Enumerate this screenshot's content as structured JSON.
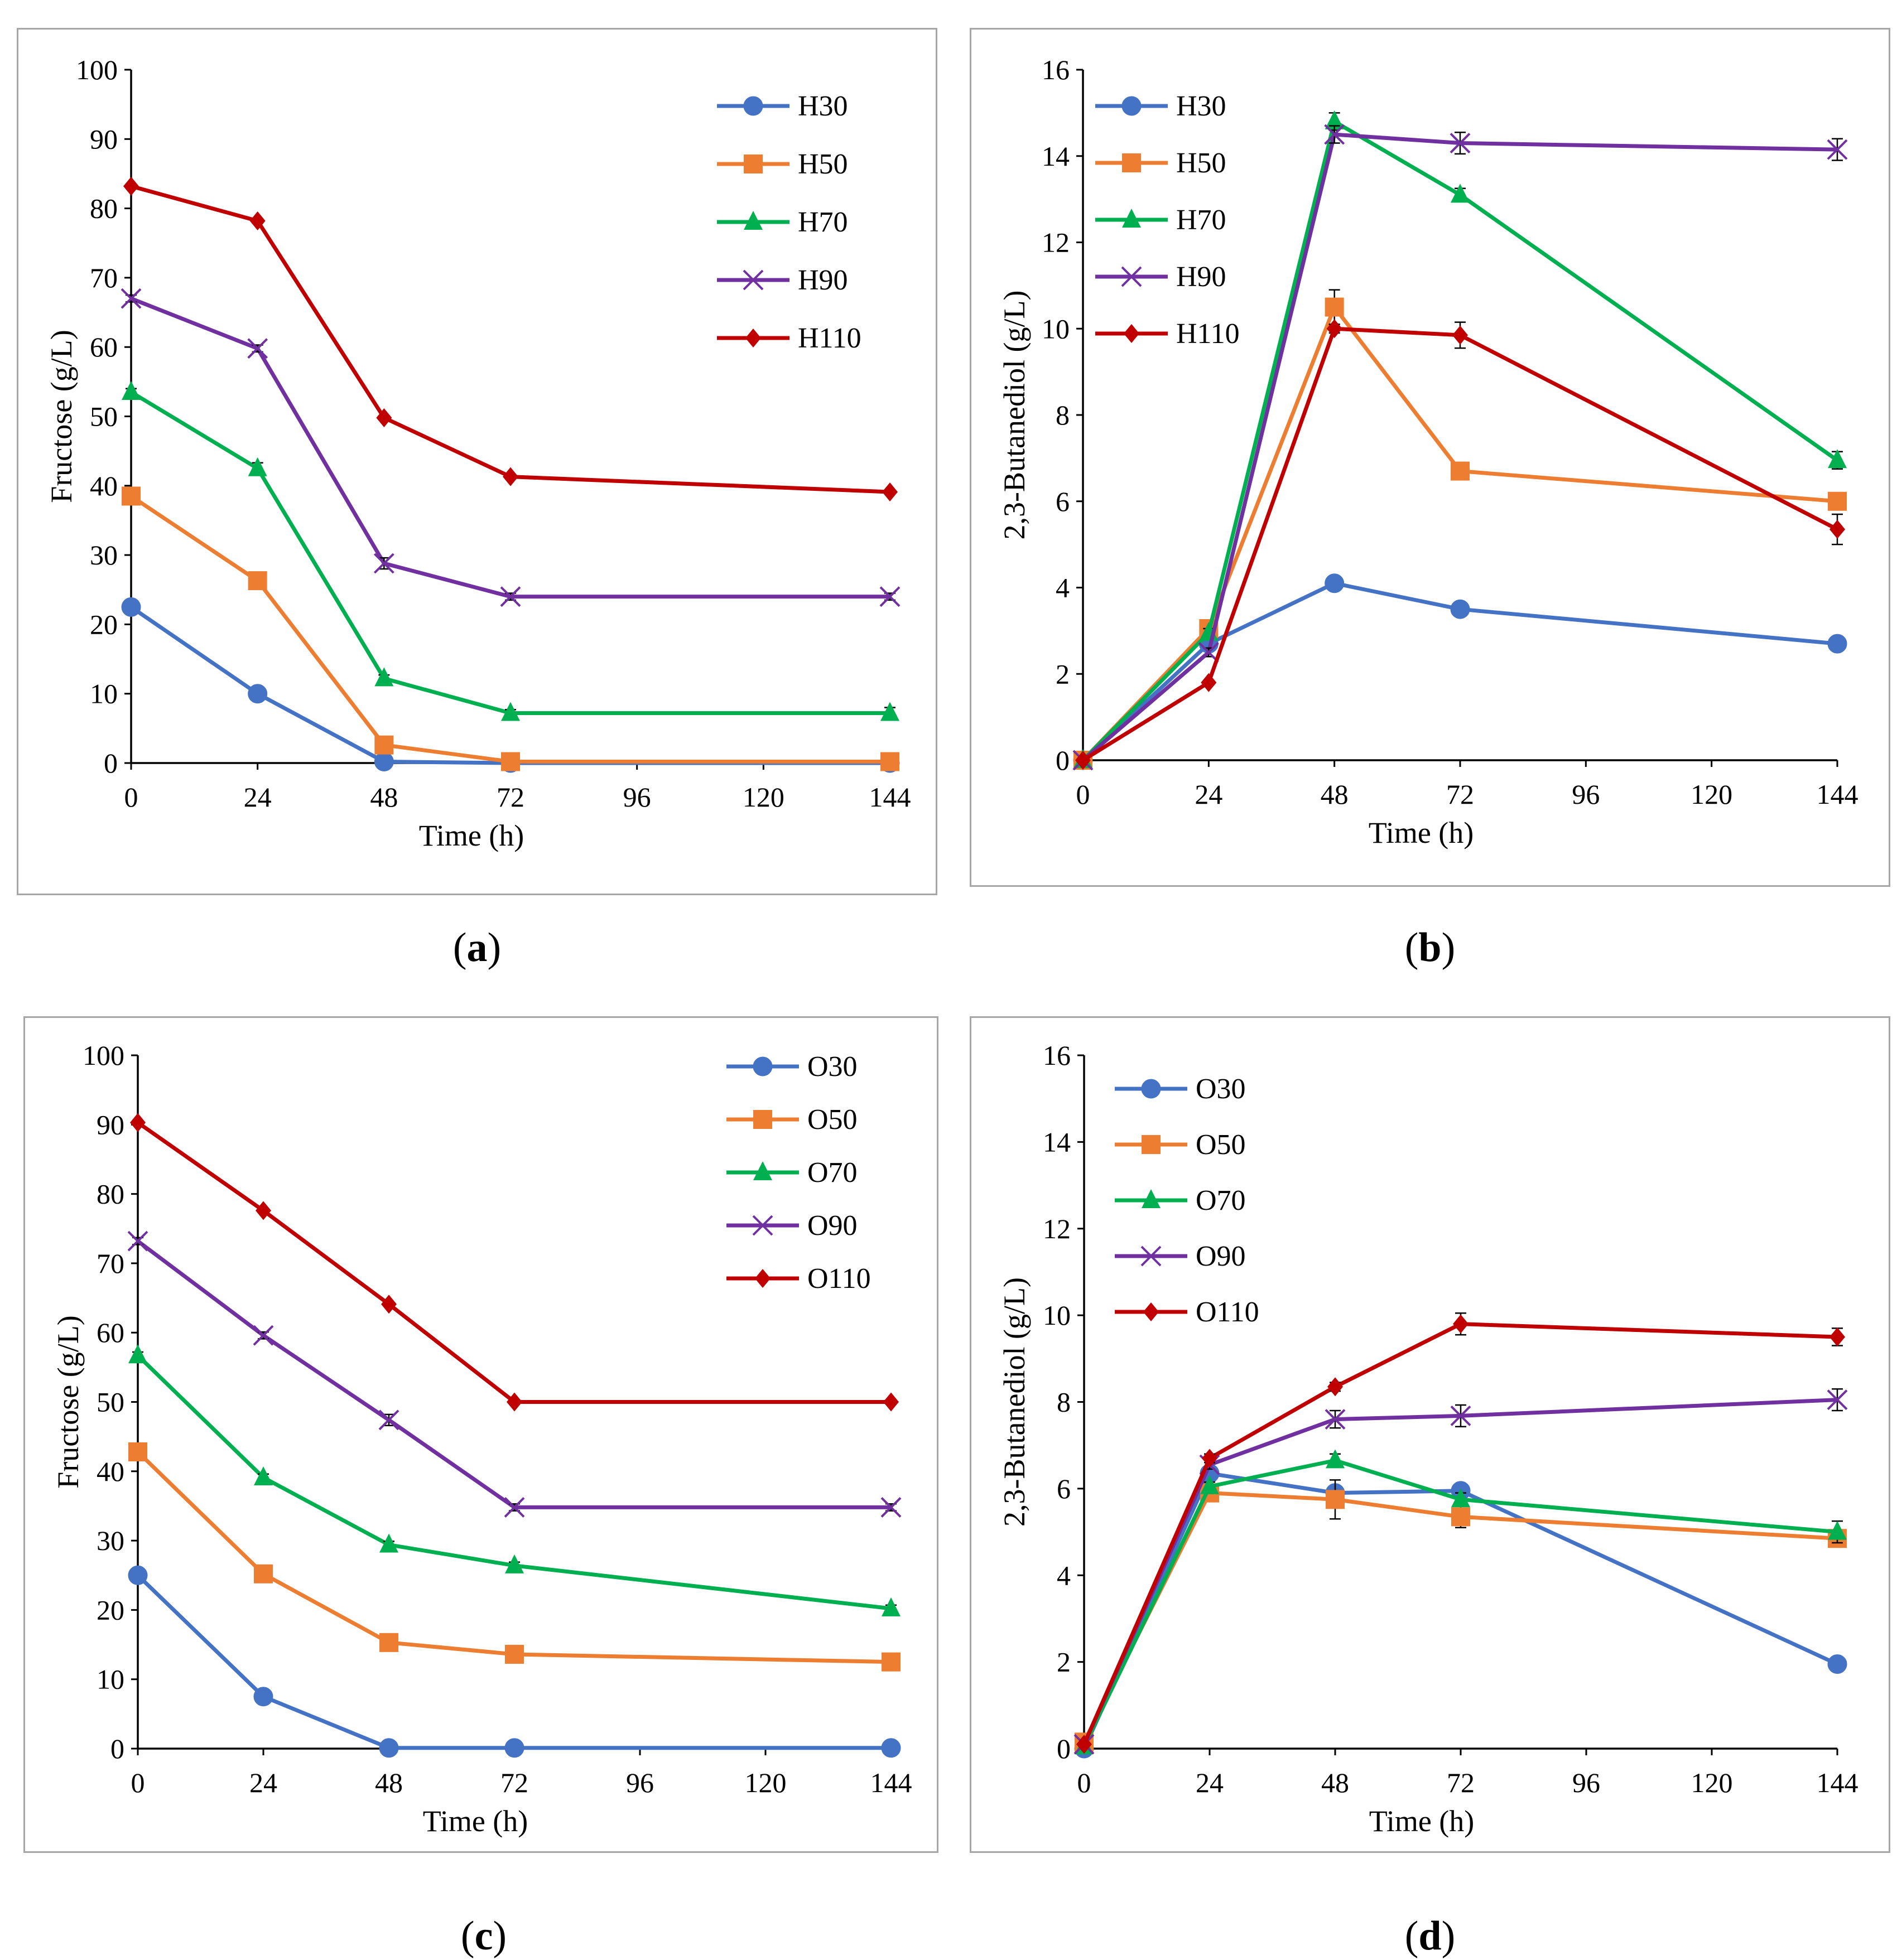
{
  "chart_data": [
    {
      "id": "a",
      "type": "line",
      "panel_label": "a",
      "xlabel": "Time (h)",
      "ylabel": "Fructose (g/L)",
      "xlim": [
        0,
        144
      ],
      "ylim": [
        0,
        100
      ],
      "xticks": [
        0,
        24,
        48,
        72,
        96,
        120,
        144
      ],
      "yticks": [
        0,
        10,
        20,
        30,
        40,
        50,
        60,
        70,
        80,
        90,
        100
      ],
      "legend_position": "top-right",
      "x": [
        0,
        24,
        48,
        72,
        144
      ],
      "series": [
        {
          "name": "H30",
          "color": "#4472c4",
          "marker": "circle",
          "values": [
            22.5,
            10,
            0.2,
            0,
            0
          ],
          "errors": [
            0.5,
            0.8,
            0.2,
            0,
            0
          ]
        },
        {
          "name": "H50",
          "color": "#ed7d31",
          "marker": "square",
          "values": [
            38.5,
            26.3,
            2.6,
            0.2,
            0.2
          ],
          "errors": [
            0.8,
            0.8,
            0.5,
            0,
            0
          ]
        },
        {
          "name": "H70",
          "color": "#00b050",
          "marker": "triangle",
          "values": [
            53.5,
            42.5,
            12.2,
            7.2,
            7.2
          ],
          "errors": [
            0.5,
            0.8,
            0.5,
            0.5,
            0.8
          ]
        },
        {
          "name": "H90",
          "color": "#7030a0",
          "marker": "x",
          "values": [
            67,
            59.8,
            28.8,
            24,
            24
          ],
          "errors": [
            0.5,
            0.5,
            0.8,
            0.5,
            0.5
          ]
        },
        {
          "name": "H110",
          "color": "#c00000",
          "marker": "diamond",
          "values": [
            83.2,
            78.2,
            49.8,
            41.3,
            39.1
          ],
          "errors": [
            0.3,
            0.3,
            0.3,
            0.3,
            0.3
          ]
        }
      ]
    },
    {
      "id": "b",
      "type": "line",
      "panel_label": "b",
      "xlabel": "Time (h)",
      "ylabel": "2,3-Butanediol (g/L)",
      "xlim": [
        0,
        144
      ],
      "ylim": [
        0,
        16
      ],
      "xticks": [
        0,
        24,
        48,
        72,
        96,
        120,
        144
      ],
      "yticks": [
        0,
        2,
        4,
        6,
        8,
        10,
        12,
        14,
        16
      ],
      "legend_position": "top-left",
      "x": [
        0,
        24,
        48,
        72,
        144
      ],
      "series": [
        {
          "name": "H30",
          "color": "#4472c4",
          "marker": "circle",
          "values": [
            0,
            2.7,
            4.1,
            3.5,
            2.7
          ],
          "errors": [
            0,
            0,
            0.1,
            0.1,
            0.05
          ]
        },
        {
          "name": "H50",
          "color": "#ed7d31",
          "marker": "square",
          "values": [
            0,
            3.05,
            10.5,
            6.7,
            6.0
          ],
          "errors": [
            0,
            0.1,
            0.4,
            0.2,
            0.1
          ]
        },
        {
          "name": "H70",
          "color": "#00b050",
          "marker": "triangle",
          "values": [
            0,
            2.95,
            14.8,
            13.1,
            6.95
          ],
          "errors": [
            0,
            0.1,
            0.2,
            0.15,
            0.2
          ]
        },
        {
          "name": "H90",
          "color": "#7030a0",
          "marker": "x",
          "values": [
            0,
            2.5,
            14.5,
            14.3,
            14.15
          ],
          "errors": [
            0,
            0.1,
            0.2,
            0.25,
            0.25
          ]
        },
        {
          "name": "H110",
          "color": "#c00000",
          "marker": "diamond",
          "values": [
            0,
            1.8,
            10.0,
            9.85,
            5.35
          ],
          "errors": [
            0,
            0.05,
            0.1,
            0.3,
            0.35
          ]
        }
      ]
    },
    {
      "id": "c",
      "type": "line",
      "panel_label": "c",
      "xlabel": "Time (h)",
      "ylabel": "Fructose (g/L)",
      "xlim": [
        0,
        144
      ],
      "ylim": [
        0,
        100
      ],
      "xticks": [
        0,
        24,
        48,
        72,
        96,
        120,
        144
      ],
      "yticks": [
        0,
        10,
        20,
        30,
        40,
        50,
        60,
        70,
        80,
        90,
        100
      ],
      "legend_position": "top-right",
      "x": [
        0,
        24,
        48,
        72,
        144
      ],
      "series": [
        {
          "name": "O30",
          "color": "#4472c4",
          "marker": "circle",
          "values": [
            25,
            7.5,
            0.1,
            0.1,
            0.1
          ],
          "errors": [
            0.5,
            0.8,
            0.1,
            0,
            0
          ]
        },
        {
          "name": "O50",
          "color": "#ed7d31",
          "marker": "square",
          "values": [
            42.8,
            25.2,
            15.3,
            13.6,
            12.5
          ],
          "errors": [
            0.5,
            0.5,
            0.5,
            0.5,
            0.5
          ]
        },
        {
          "name": "O70",
          "color": "#00b050",
          "marker": "triangle",
          "values": [
            56.7,
            39.1,
            29.4,
            26.4,
            20.2
          ],
          "errors": [
            0.5,
            0.5,
            0.5,
            0.5,
            0.5
          ]
        },
        {
          "name": "O90",
          "color": "#7030a0",
          "marker": "x",
          "values": [
            73.2,
            59.6,
            47.4,
            34.8,
            34.8
          ],
          "errors": [
            0.5,
            0.5,
            0.8,
            0.5,
            0.5
          ]
        },
        {
          "name": "O110",
          "color": "#c00000",
          "marker": "diamond",
          "values": [
            90.3,
            77.6,
            64.1,
            50,
            50
          ],
          "errors": [
            0.3,
            0.3,
            0.3,
            0.3,
            0.3
          ]
        }
      ]
    },
    {
      "id": "d",
      "type": "line",
      "panel_label": "d",
      "xlabel": "Time (h)",
      "ylabel": "2,3-Butanediol (g/L)",
      "xlim": [
        0,
        144
      ],
      "ylim": [
        0,
        16
      ],
      "xticks": [
        0,
        24,
        48,
        72,
        96,
        120,
        144
      ],
      "yticks": [
        0,
        2,
        4,
        6,
        8,
        10,
        12,
        14,
        16
      ],
      "legend_position": "top-left",
      "x": [
        0,
        24,
        48,
        72,
        144
      ],
      "series": [
        {
          "name": "O30",
          "color": "#4472c4",
          "marker": "circle",
          "values": [
            0,
            6.35,
            5.9,
            5.95,
            1.95
          ],
          "errors": [
            0,
            0.1,
            0.15,
            0.1,
            0.1
          ]
        },
        {
          "name": "O50",
          "color": "#ed7d31",
          "marker": "square",
          "values": [
            0.15,
            5.9,
            5.75,
            5.35,
            4.85
          ],
          "errors": [
            0,
            0.1,
            0.45,
            0.25,
            0.15
          ]
        },
        {
          "name": "O70",
          "color": "#00b050",
          "marker": "triangle",
          "values": [
            0.05,
            6.05,
            6.65,
            5.75,
            5.0
          ],
          "errors": [
            0,
            0.1,
            0.15,
            0.15,
            0.25
          ]
        },
        {
          "name": "O90",
          "color": "#7030a0",
          "marker": "x",
          "values": [
            0.1,
            6.55,
            7.6,
            7.68,
            8.05
          ],
          "errors": [
            0,
            0.1,
            0.2,
            0.25,
            0.25
          ]
        },
        {
          "name": "O110",
          "color": "#c00000",
          "marker": "diamond",
          "values": [
            0.1,
            6.7,
            8.35,
            9.8,
            9.5
          ],
          "errors": [
            0,
            0.1,
            0.1,
            0.25,
            0.2
          ]
        }
      ]
    }
  ]
}
